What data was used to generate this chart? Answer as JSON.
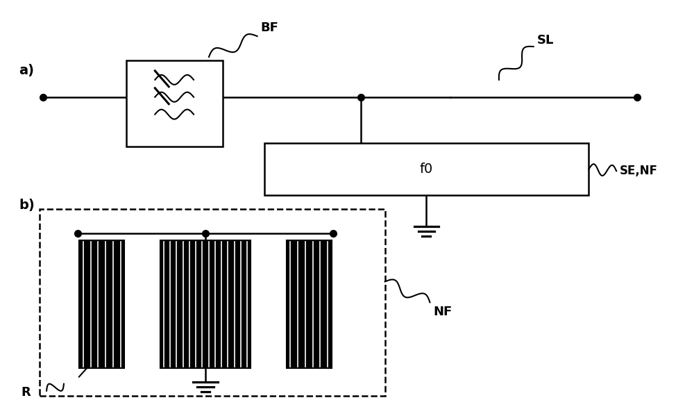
{
  "bg_color": "#ffffff",
  "line_color": "#000000",
  "title_a": "a)",
  "title_b": "b)",
  "label_BF": "BF",
  "label_SL": "SL",
  "label_f0": "f0",
  "label_SE_NF": "SE,NF",
  "label_NF": "NF",
  "label_R": "R",
  "figsize": [
    10.0,
    5.86
  ],
  "dpi": 100
}
